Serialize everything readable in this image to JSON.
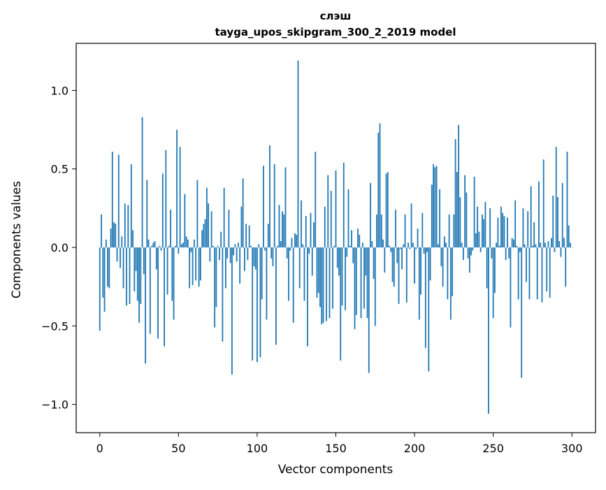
{
  "chart_data": {
    "type": "bar",
    "title": "слэш",
    "subtitle": "tayga_upos_skipgram_300_2_2019 model",
    "xlabel": "Vector components",
    "ylabel": "Components values",
    "xlim": [
      -15,
      315
    ],
    "ylim": [
      -1.18,
      1.3
    ],
    "x_ticks": [
      0,
      50,
      100,
      150,
      200,
      250,
      300
    ],
    "y_ticks": [
      -1.0,
      -0.5,
      0.0,
      0.5,
      1.0
    ],
    "x_tick_labels": [
      "0",
      "50",
      "100",
      "150",
      "200",
      "250",
      "300"
    ],
    "y_tick_labels": [
      "−1.0",
      "−0.5",
      "0.0",
      "0.5",
      "1.0"
    ],
    "bar_color": "#1f77b4",
    "values": [
      -0.53,
      0.21,
      -0.32,
      -0.41,
      0.05,
      -0.25,
      -0.26,
      0.12,
      0.61,
      0.16,
      0.15,
      -0.09,
      0.59,
      -0.13,
      0.07,
      -0.26,
      0.28,
      -0.37,
      0.27,
      -0.36,
      0.53,
      0.11,
      -0.28,
      -0.15,
      -0.34,
      -0.48,
      -0.36,
      0.83,
      -0.17,
      -0.74,
      0.43,
      0.05,
      -0.55,
      0.01,
      0.03,
      0.04,
      -0.14,
      -0.58,
      0.01,
      -0.02,
      0.47,
      -0.63,
      0.62,
      -0.3,
      0.01,
      0.24,
      -0.34,
      -0.46,
      0.01,
      0.75,
      -0.04,
      0.64,
      0.02,
      0.03,
      0.34,
      0.07,
      0.05,
      -0.26,
      -0.03,
      -0.24,
      0.05,
      -0.21,
      0.43,
      -0.25,
      -0.21,
      0.11,
      0.15,
      0.18,
      0.38,
      0.28,
      -0.09,
      0.23,
      0.01,
      -0.51,
      -0.38,
      0.01,
      -0.08,
      0.1,
      -0.6,
      0.38,
      -0.26,
      -0.07,
      0.24,
      -0.1,
      -0.81,
      -0.05,
      0.02,
      -0.09,
      0.03,
      -0.23,
      0.26,
      0.44,
      -0.15,
      0.15,
      -0.08,
      0.14,
      0.01,
      -0.72,
      -0.12,
      -0.14,
      -0.73,
      0.02,
      -0.7,
      -0.33,
      0.52,
      -0.02,
      -0.46,
      0.15,
      0.65,
      -0.07,
      -0.12,
      0.53,
      -0.62,
      0.01,
      0.27,
      0.04,
      0.23,
      0.21,
      0.51,
      -0.07,
      -0.34,
      -0.02,
      0.06,
      -0.48,
      0.09,
      0.08,
      1.19,
      -0.26,
      0.3,
      0.02,
      -0.34,
      0.2,
      -0.63,
      -0.04,
      0.22,
      -0.18,
      0.16,
      0.61,
      -0.32,
      -0.29,
      -0.38,
      -0.49,
      -0.48,
      0.26,
      -0.47,
      0.46,
      -0.45,
      0.36,
      -0.39,
      0.01,
      0.49,
      -0.13,
      -0.18,
      -0.72,
      -0.37,
      0.54,
      -0.4,
      -0.06,
      0.37,
      0.01,
      0.11,
      -0.1,
      -0.52,
      -0.43,
      0.12,
      0.08,
      -0.45,
      0.03,
      -0.39,
      -0.18,
      -0.45,
      -0.8,
      0.41,
      0.04,
      -0.2,
      -0.5,
      0.21,
      0.73,
      0.79,
      0.21,
      0.05,
      -0.16,
      0.47,
      0.48,
      0.01,
      -0.03,
      -0.22,
      -0.25,
      0.24,
      -0.1,
      -0.36,
      -0.01,
      -0.14,
      0.02,
      0.21,
      -0.35,
      0.03,
      -0.01,
      0.28,
      0.03,
      -0.23,
      -0.01,
      0.12,
      -0.46,
      -0.3,
      0.22,
      -0.04,
      -0.64,
      -0.03,
      -0.79,
      -0.21,
      0.4,
      0.53,
      0.51,
      0.52,
      0.02,
      0.37,
      -0.12,
      -0.25,
      0.07,
      0.03,
      -0.33,
      0.21,
      -0.46,
      -0.31,
      0.21,
      0.69,
      0.48,
      0.78,
      0.32,
      0.03,
      -0.08,
      0.46,
      0.35,
      -0.07,
      -0.16,
      -0.05,
      -0.02,
      0.45,
      0.09,
      0.26,
      0.1,
      -0.03,
      0.21,
      0.18,
      0.29,
      -0.26,
      -1.06,
      0.25,
      -0.07,
      -0.45,
      -0.29,
      0.03,
      0.19,
      0.01,
      0.26,
      0.22,
      0.2,
      -0.08,
      0.19,
      -0.07,
      -0.51,
      0.06,
      0.05,
      0.3,
      0.01,
      -0.33,
      -0.03,
      -0.83,
      0.25,
      0.02,
      -0.22,
      0.23,
      -0.33,
      0.39,
      0.01,
      0.16,
      0.02,
      -0.33,
      0.42,
      0.03,
      -0.35,
      0.56,
      0.03,
      -0.28,
      0.04,
      -0.32,
      0.06,
      0.33,
      -0.03,
      0.64,
      0.32,
      0.04,
      -0.06,
      0.41,
      0.06,
      -0.25,
      0.61,
      0.14,
      0.03,
      0.0,
      0.0
    ]
  }
}
